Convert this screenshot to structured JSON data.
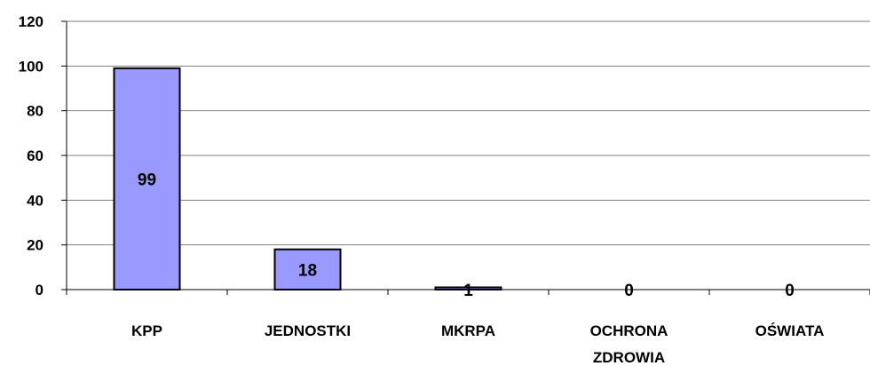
{
  "chart_data": {
    "type": "bar",
    "categories": [
      [
        "KPP"
      ],
      [
        "JEDNOSTKI"
      ],
      [
        "MKRPA"
      ],
      [
        "OCHRONA",
        "ZDROWIA"
      ],
      [
        "OŚWIATA"
      ]
    ],
    "values": [
      99,
      18,
      1,
      0,
      0
    ],
    "ylim": [
      0,
      120
    ],
    "yticks": [
      0,
      20,
      40,
      60,
      80,
      100,
      120
    ],
    "grid": true,
    "legend": "none",
    "bar_color": "#9999FF",
    "bar_edge_color": "#000000"
  }
}
